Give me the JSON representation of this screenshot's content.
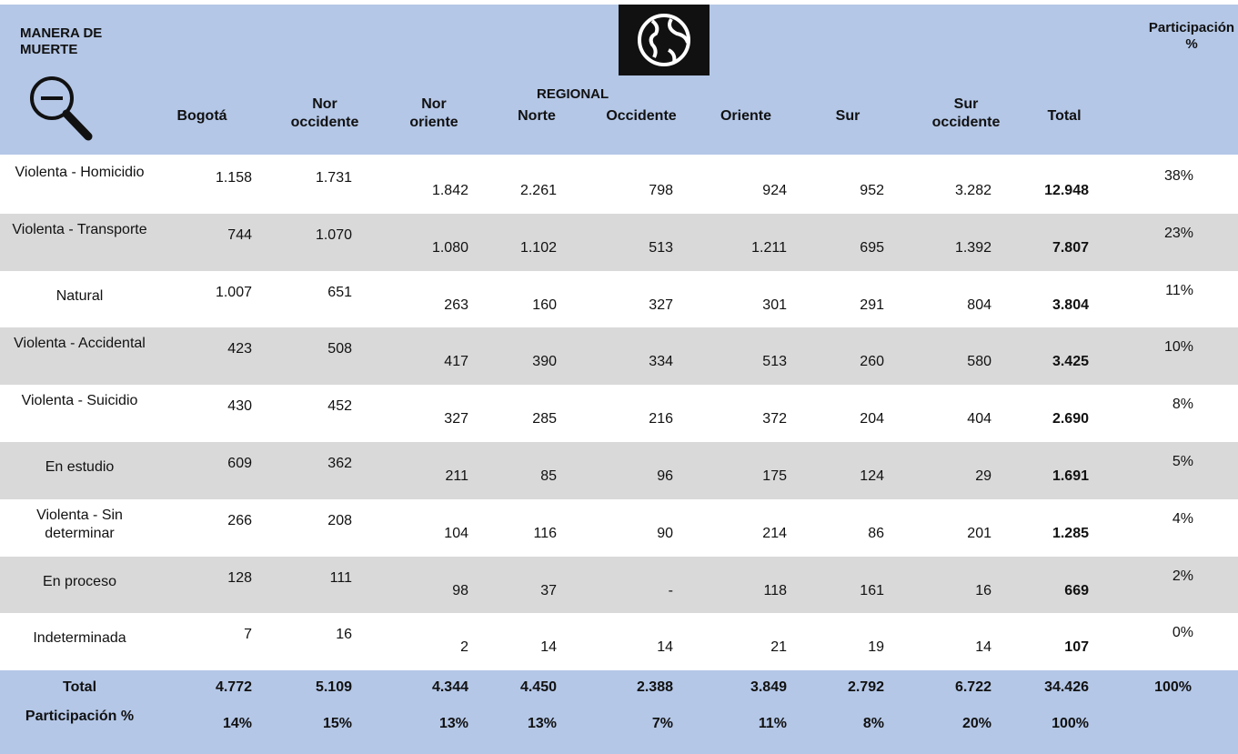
{
  "header": {
    "title": "MANERA DE MUERTE",
    "regional": "REGIONAL",
    "share_label": "Participación %"
  },
  "columns": [
    "Bogotá",
    "Nor occidente",
    "Nor oriente",
    "Norte",
    "Occidente",
    "Oriente",
    "Sur",
    "Sur occidente",
    "Total"
  ],
  "rows": [
    {
      "label": "Violenta - Homicidio",
      "values": [
        "1.158",
        "1.731",
        "1.842",
        "2.261",
        "798",
        "924",
        "952",
        "3.282"
      ],
      "total": "12.948",
      "share": "38%"
    },
    {
      "label": "Violenta - Transporte",
      "values": [
        "744",
        "1.070",
        "1.080",
        "1.102",
        "513",
        "1.211",
        "695",
        "1.392"
      ],
      "total": "7.807",
      "share": "23%"
    },
    {
      "label": "Natural",
      "values": [
        "1.007",
        "651",
        "263",
        "160",
        "327",
        "301",
        "291",
        "804"
      ],
      "total": "3.804",
      "share": "11%"
    },
    {
      "label": "Violenta - Accidental",
      "values": [
        "423",
        "508",
        "417",
        "390",
        "334",
        "513",
        "260",
        "580"
      ],
      "total": "3.425",
      "share": "10%"
    },
    {
      "label": "Violenta - Suicidio",
      "values": [
        "430",
        "452",
        "327",
        "285",
        "216",
        "372",
        "204",
        "404"
      ],
      "total": "2.690",
      "share": "8%"
    },
    {
      "label": "En estudio",
      "values": [
        "609",
        "362",
        "211",
        "85",
        "96",
        "175",
        "124",
        "29"
      ],
      "total": "1.691",
      "share": "5%"
    },
    {
      "label": "Violenta - Sin determinar",
      "values": [
        "266",
        "208",
        "104",
        "116",
        "90",
        "214",
        "86",
        "201"
      ],
      "total": "1.285",
      "share": "4%"
    },
    {
      "label": "En proceso",
      "values": [
        "128",
        "111",
        "98",
        "37",
        "-",
        "118",
        "161",
        "16"
      ],
      "total": "669",
      "share": "2%"
    },
    {
      "label": "Indeterminada",
      "values": [
        "7",
        "16",
        "2",
        "14",
        "14",
        "21",
        "19",
        "14"
      ],
      "total": "107",
      "share": "0%"
    }
  ],
  "totals": {
    "label": "Total",
    "values": [
      "4.772",
      "5.109",
      "4.344",
      "4.450",
      "2.388",
      "3.849",
      "2.792",
      "6.722"
    ],
    "total": "34.426",
    "share": "100%"
  },
  "share_row": {
    "label": "Participación %",
    "values": [
      "14%",
      "15%",
      "13%",
      "13%",
      "7%",
      "11%",
      "8%",
      "20%"
    ],
    "total": "100%"
  }
}
